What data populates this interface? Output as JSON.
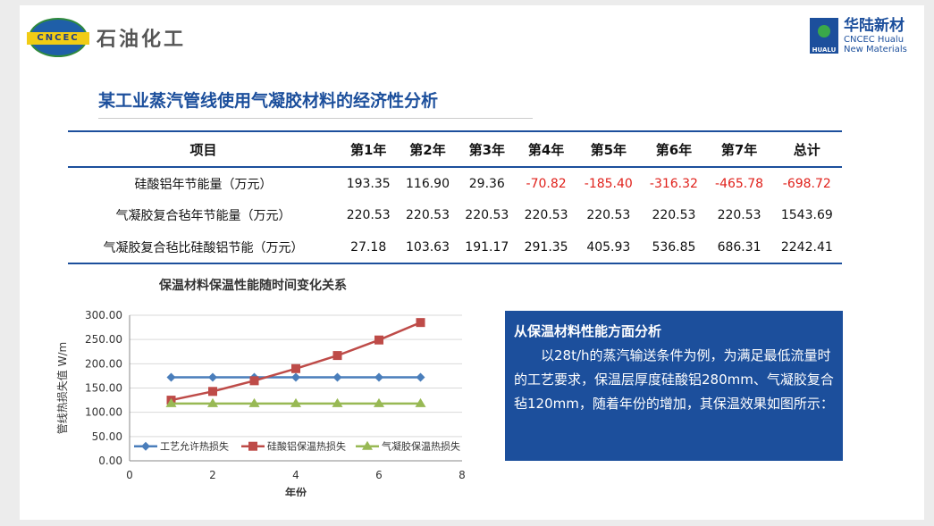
{
  "header": {
    "left_logo_text": "CNCEC",
    "left_brand": "石油化工",
    "right_logo_mark": "HUALU",
    "right_brand_cn": "华陆新材",
    "right_brand_en1": "CNCEC Hualu",
    "right_brand_en2": "New Materials"
  },
  "title": "某工业蒸汽管线使用气凝胶材料的经济性分析",
  "table": {
    "headers": [
      "项目",
      "第1年",
      "第2年",
      "第3年",
      "第4年",
      "第5年",
      "第6年",
      "第7年",
      "总计"
    ],
    "rows": [
      [
        "硅酸铝年节能量（万元）",
        "193.35",
        "116.90",
        "29.36",
        "-70.82",
        "-185.40",
        "-316.32",
        "-465.78",
        "-698.72"
      ],
      [
        "气凝胶复合毡年节能量（万元）",
        "220.53",
        "220.53",
        "220.53",
        "220.53",
        "220.53",
        "220.53",
        "220.53",
        "1543.69"
      ],
      [
        "气凝胶复合毡比硅酸铝节能（万元）",
        "27.18",
        "103.63",
        "191.17",
        "291.35",
        "405.93",
        "536.85",
        "686.31",
        "2242.41"
      ]
    ],
    "negative_color": "#e0211b"
  },
  "chart_data": {
    "type": "line",
    "title": "保温材料保温性能随时间变化关系",
    "xlabel": "年份",
    "ylabel": "管线热损失值 W/m",
    "xlim": [
      0,
      8
    ],
    "ylim": [
      0,
      300
    ],
    "xticks": [
      "0",
      "2",
      "4",
      "6",
      "8"
    ],
    "yticks": [
      "0.00",
      "50.00",
      "100.00",
      "150.00",
      "200.00",
      "250.00",
      "300.00"
    ],
    "grid": true,
    "legend_position": "inside-bottom",
    "x": [
      1,
      2,
      3,
      4,
      5,
      6,
      7
    ],
    "series": [
      {
        "name": "工艺允许热损失",
        "values": [
          172,
          172,
          172,
          172,
          172,
          172,
          172
        ],
        "color": "#4a7ebb",
        "marker": "diamond"
      },
      {
        "name": "硅酸铝保温热损失",
        "values": [
          125,
          143,
          165,
          190,
          217,
          249,
          285
        ],
        "color": "#be4b48",
        "marker": "square"
      },
      {
        "name": "气凝胶保温热损失",
        "values": [
          118,
          118,
          118,
          118,
          118,
          118,
          118
        ],
        "color": "#98b954",
        "marker": "triangle"
      }
    ]
  },
  "analysis": {
    "heading": "从保温材料性能方面分析",
    "body": "以28t/h的蒸汽输送条件为例，为满足最低流量时的工艺要求，保温层厚度硅酸铝280mm、气凝胶复合毡120mm，随着年份的增加，其保温效果如图所示："
  }
}
